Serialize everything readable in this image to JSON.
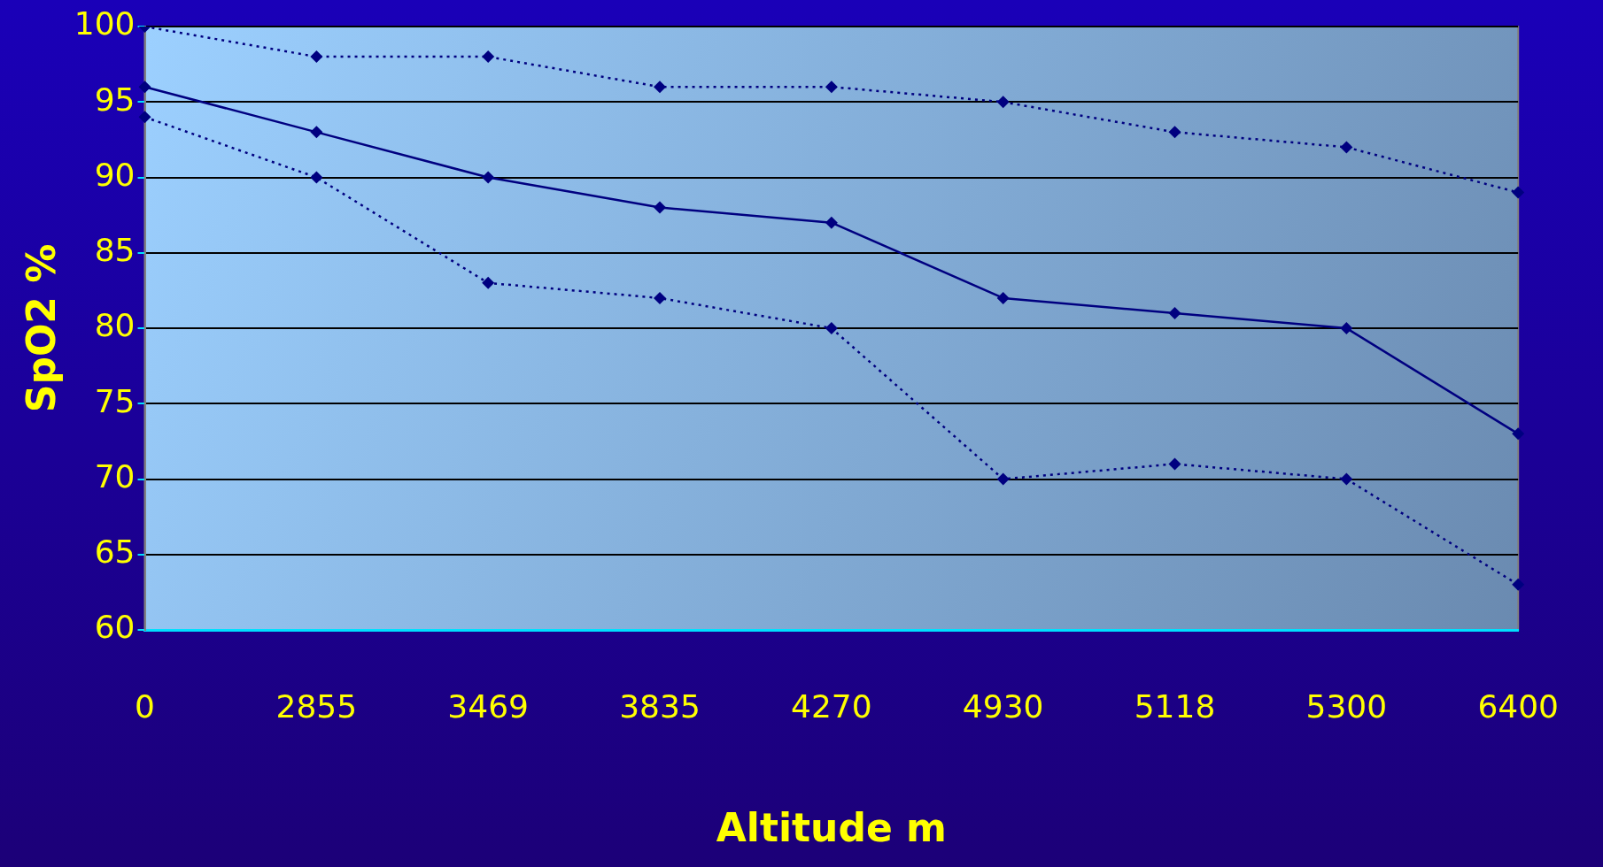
{
  "chart_data": {
    "type": "line",
    "xlabel": "Altitude m",
    "ylabel": "SpO2 %",
    "categories": [
      "0",
      "2855",
      "3469",
      "3835",
      "4270",
      "4930",
      "5118",
      "5300",
      "6400"
    ],
    "series": [
      {
        "color": "#000080",
        "line_style": "dotted",
        "values": [
          100,
          98,
          98,
          96,
          96,
          95,
          93,
          92,
          89
        ]
      },
      {
        "color": "#000080",
        "line_style": "solid",
        "values": [
          96,
          93,
          90,
          88,
          87,
          82,
          81,
          80,
          73
        ]
      },
      {
        "color": "#000080",
        "line_style": "dotted",
        "values": [
          94,
          90,
          83,
          82,
          80,
          70,
          71,
          70,
          63
        ]
      }
    ],
    "ylim": [
      60,
      100
    ],
    "yticks": [
      60,
      65,
      70,
      75,
      80,
      85,
      90,
      95,
      100
    ],
    "grid": "y",
    "legend": false,
    "marker": "diamond"
  }
}
